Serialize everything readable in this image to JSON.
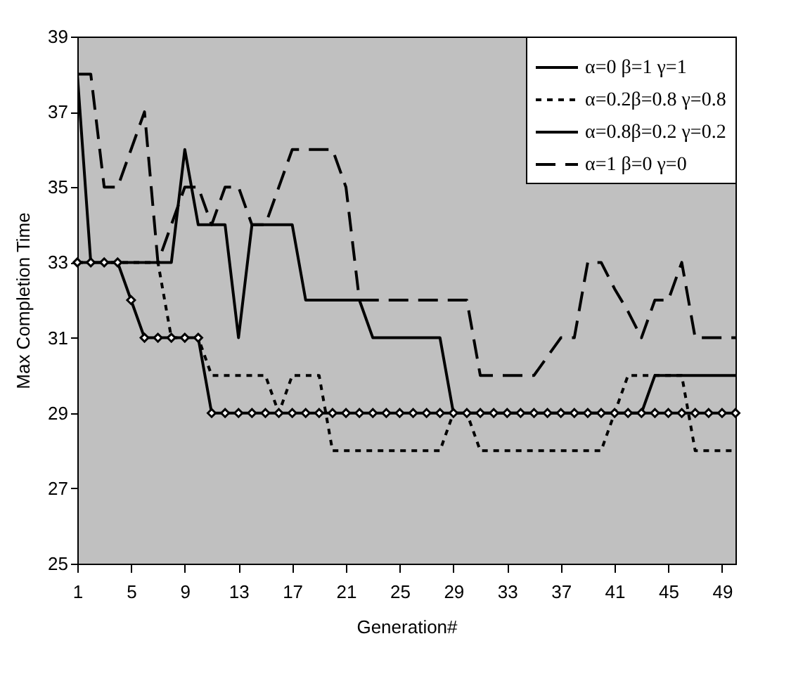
{
  "chart_data": {
    "type": "line",
    "xlabel": "Generation#",
    "ylabel": "Max Completion Time",
    "x": [
      1,
      2,
      3,
      4,
      5,
      6,
      7,
      8,
      9,
      10,
      11,
      12,
      13,
      14,
      15,
      16,
      17,
      18,
      19,
      20,
      21,
      22,
      23,
      24,
      25,
      26,
      27,
      28,
      29,
      30,
      31,
      32,
      33,
      34,
      35,
      36,
      37,
      38,
      39,
      40,
      41,
      42,
      43,
      44,
      45,
      46,
      47,
      48,
      49,
      50
    ],
    "xlim": [
      1,
      50
    ],
    "xticks": [
      1,
      5,
      9,
      13,
      17,
      21,
      25,
      29,
      33,
      37,
      41,
      45,
      49
    ],
    "ylim": [
      25,
      39
    ],
    "yticks": [
      25,
      27,
      29,
      31,
      33,
      35,
      37,
      39
    ],
    "grid": false,
    "legend": "top right",
    "series": [
      {
        "name": "α=0   β=1    γ=1",
        "color": "#000000",
        "line_style": "solid",
        "marker": "diamond",
        "values": [
          33,
          33,
          33,
          33,
          32,
          31,
          31,
          31,
          31,
          31,
          29,
          29,
          29,
          29,
          29,
          29,
          29,
          29,
          29,
          29,
          29,
          29,
          29,
          29,
          29,
          29,
          29,
          29,
          29,
          29,
          29,
          29,
          29,
          29,
          29,
          29,
          29,
          29,
          29,
          29,
          29,
          29,
          29,
          29,
          29,
          29,
          29,
          29,
          29,
          29
        ]
      },
      {
        "name": "α=0.2β=0.8 γ=0.8",
        "color": "#000000",
        "line_style": "dotted",
        "marker": "none",
        "values": [
          33,
          33,
          33,
          33,
          33,
          33,
          33,
          31,
          31,
          31,
          30,
          30,
          30,
          30,
          30,
          29,
          30,
          30,
          30,
          28,
          28,
          28,
          28,
          28,
          28,
          28,
          28,
          28,
          29,
          29,
          28,
          28,
          28,
          28,
          28,
          28,
          28,
          28,
          28,
          28,
          29,
          30,
          30,
          30,
          30,
          30,
          28,
          28,
          28,
          28
        ]
      },
      {
        "name": "α=0.8β=0.2 γ=0.2",
        "color": "#000000",
        "line_style": "solid",
        "marker": "none",
        "values": [
          38,
          33,
          33,
          33,
          33,
          33,
          33,
          33,
          36,
          34,
          34,
          34,
          31,
          34,
          34,
          34,
          34,
          32,
          32,
          32,
          32,
          32,
          31,
          31,
          31,
          31,
          31,
          31,
          29,
          29,
          29,
          29,
          29,
          29,
          29,
          29,
          29,
          29,
          29,
          29,
          29,
          29,
          29,
          30,
          30,
          30,
          30,
          30,
          30,
          30
        ]
      },
      {
        "name": "α=1   β=0    γ=0",
        "color": "#000000",
        "line_style": "dashed",
        "marker": "none",
        "values": [
          38,
          38,
          35,
          35,
          36,
          37,
          33,
          34,
          35,
          35,
          34,
          35,
          35,
          34,
          34,
          35,
          36,
          36,
          36,
          36,
          35,
          32,
          32,
          32,
          32,
          32,
          32,
          32,
          32,
          32,
          30,
          30,
          30,
          30,
          30,
          30.5,
          31,
          31,
          33,
          33,
          32.3,
          31.7,
          31,
          32,
          32,
          33,
          31,
          31,
          31,
          31
        ]
      }
    ]
  }
}
